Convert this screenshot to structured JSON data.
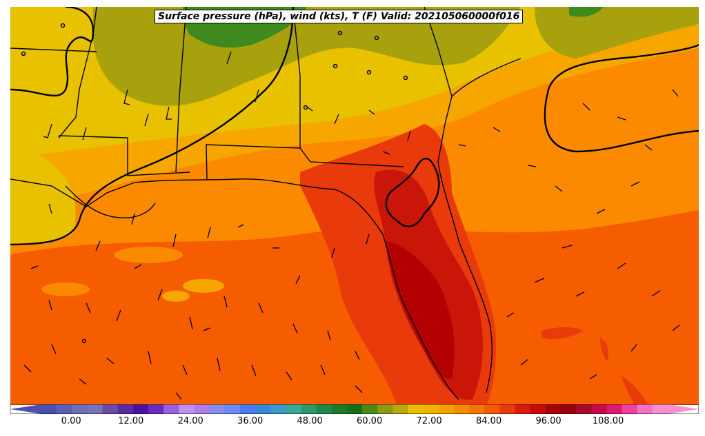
{
  "title": "Surface pressure (hPa), wind (kts), T (F) Valid: 202105060000f016",
  "colorbar": {
    "ticks": [
      {
        "value": 0,
        "label": "0.00"
      },
      {
        "value": 12,
        "label": "12.00"
      },
      {
        "value": 24,
        "label": "24.00"
      },
      {
        "value": 36,
        "label": "36.00"
      },
      {
        "value": 48,
        "label": "48.00"
      },
      {
        "value": 60,
        "label": "60.00"
      },
      {
        "value": 72,
        "label": "72.00"
      },
      {
        "value": 84,
        "label": "84.00"
      },
      {
        "value": 96,
        "label": "96.00"
      },
      {
        "value": 108,
        "label": "108.00"
      }
    ],
    "min": -6,
    "max": 120,
    "colors": [
      "#4a4fb0",
      "#5c5fb8",
      "#6e6eb8",
      "#7a72b8",
      "#6a4aa8",
      "#5a2aa0",
      "#4a12a0",
      "#6a2ac0",
      "#9a60e0",
      "#c090f0",
      "#b07ae8",
      "#8a8af0",
      "#6a8af8",
      "#4a7af0",
      "#3a86d8",
      "#3a9ac8",
      "#38a89a",
      "#2a9a6a",
      "#1a8a4a",
      "#1a7a2a",
      "#147014",
      "#4a8a14",
      "#8a9a14",
      "#b8a80a",
      "#e8c000",
      "#f0b400",
      "#f8a000",
      "#f88a00",
      "#f87400",
      "#f85800",
      "#e83a0a",
      "#d81a0a",
      "#c80a0a",
      "#a8000a",
      "#98000a",
      "#a80a2a",
      "#c80a4a",
      "#e01870",
      "#f040a0",
      "#f870c0",
      "#f890d0"
    ]
  },
  "map_layers": {
    "regions": [
      {
        "name": "dark-green",
        "color": "#3f8a1f"
      },
      {
        "name": "olive",
        "color": "#a6a10c"
      },
      {
        "name": "yellow",
        "color": "#e8c200"
      },
      {
        "name": "light-orange",
        "color": "#f7a600"
      },
      {
        "name": "orange",
        "color": "#fb8a00"
      },
      {
        "name": "dark-orange",
        "color": "#f65c00"
      },
      {
        "name": "red-orange",
        "color": "#e83a0a"
      },
      {
        "name": "red",
        "color": "#c91608"
      },
      {
        "name": "dark-red",
        "color": "#b30000"
      }
    ],
    "isobar_color": "#000000",
    "boundary_color": "#000000"
  }
}
